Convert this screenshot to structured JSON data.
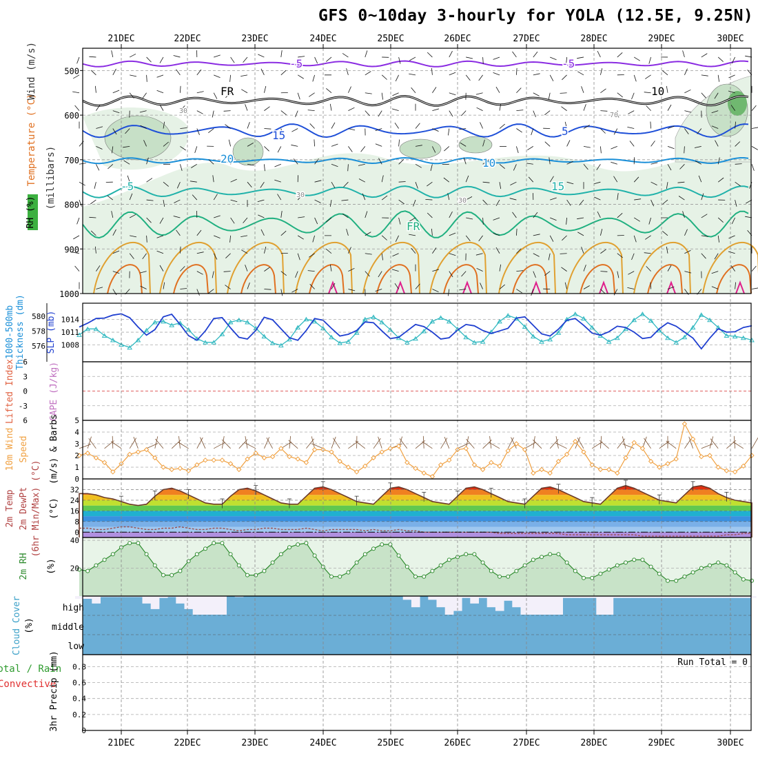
{
  "title": "GFS 0~10day 3-hourly for YOLA (12.5E, 9.25N)",
  "colors": {
    "rh_light": "#e6f2e6",
    "rh_mid": "#c7e0c7",
    "rh_dark": "#8cb08c",
    "temp_purple": "#8a2be2",
    "temp_black": "#000000",
    "temp_blue": "#1e4fd8",
    "temp_sky": "#1a8fd8",
    "temp_teal": "#20b2aa",
    "temp_green": "#20b080",
    "temp_gold": "#e0a030",
    "temp_orange": "#e07020",
    "temp_magenta": "#e0208c",
    "slp": "#1f3fd0",
    "thickness": "#30b8c0",
    "li_zero": "#e06060",
    "wind10": "#f0a040",
    "barb10": "#7a5030",
    "temp_line": "#6b3a2a",
    "dew_line": "#9a5050",
    "rh2m": "#2e8b2e",
    "rh2m_fill": "#c8e3c8",
    "cloud": "#6baed6",
    "cloud_clear": "#f3f0fa"
  },
  "chart_data": [
    {
      "type": "contour",
      "panel": "upper_air",
      "ylabels": [
        "Temperature (°C)",
        "Wind (m/s)",
        "(millibars)",
        "RH (%)"
      ],
      "yticks": [
        500,
        600,
        700,
        800,
        900,
        1000
      ],
      "ylim": [
        450,
        1000
      ],
      "xtick_labels": [
        "21DEC",
        "22DEC",
        "23DEC",
        "24DEC",
        "25DEC",
        "26DEC",
        "27DEC",
        "28DEC",
        "29DEC",
        "30DEC"
      ],
      "isotherm_labels": [
        "-5",
        "FR",
        "-5",
        "10",
        "15",
        "20",
        "-5",
        "FR",
        "5",
        "10",
        "15",
        "30",
        "30",
        "30",
        "70"
      ],
      "isotherms": [
        {
          "value": "-5",
          "level": 485,
          "color": "temp_purple"
        },
        {
          "value": "FR",
          "level": 568,
          "color": "temp_black"
        },
        {
          "value": "-5",
          "level": 635,
          "color": "temp_blue"
        },
        {
          "value": "10",
          "level": 702,
          "color": "temp_sky"
        },
        {
          "value": "15",
          "level": 772,
          "color": "temp_teal"
        },
        {
          "value": "20",
          "level": 845,
          "color": "temp_green"
        }
      ]
    },
    {
      "type": "line",
      "panel": "slp_thickness",
      "ylabels": [
        "1000-500mb Thickness (dm)",
        "SLP (mb)"
      ],
      "left_ticks": [
        576,
        578,
        580
      ],
      "right_ticks": [
        1008,
        1011,
        1014
      ],
      "series": [
        {
          "name": "SLP (mb)",
          "color": "slp",
          "values": [
            1012.2,
            1013.1,
            1014.2,
            1014.3,
            1015,
            1015.3,
            1014.4,
            1012.2,
            1010.3,
            1011.6,
            1014.6,
            1015.2,
            1012.8,
            1010.2,
            1009.1,
            1011.3,
            1014.2,
            1014.4,
            1012,
            1009.8,
            1009.4,
            1011.4,
            1014.5,
            1013.9,
            1011.8,
            1009.7,
            1009.1,
            1011.4,
            1014.2,
            1013.8,
            1011.9,
            1010.1,
            1010.5,
            1011.4,
            1013.4,
            1013.2,
            1011.3,
            1009.5,
            1009.8,
            1011.3,
            1012.8,
            1012.3,
            1011,
            1009.4,
            1009.7,
            1011.5,
            1012.8,
            1012.5,
            1011.4,
            1010.7,
            1011.3,
            1011.9,
            1014.3,
            1014.6,
            1012.6,
            1010.6,
            1010.1,
            1011.7,
            1013.8,
            1014.2,
            1012.6,
            1010.8,
            1010.3,
            1011.1,
            1012.4,
            1012.1,
            1011,
            1009.5,
            1009.8,
            1011.8,
            1013.2,
            1012.4,
            1011,
            1009.6,
            1007.1,
            1009.6,
            1011.8,
            1011,
            1011.1,
            1012.1,
            1012.5
          ]
        },
        {
          "name": "1000-500mb Thickness (dm)",
          "color": "thickness",
          "values": [
            577.5,
            578.3,
            578.3,
            577.4,
            576.8,
            576.2,
            575.8,
            576.8,
            578.1,
            579.2,
            579.3,
            578.8,
            579.1,
            578.2,
            577,
            576.5,
            576.5,
            577.6,
            579.2,
            579.5,
            579.2,
            578.4,
            577.3,
            576.4,
            576.1,
            576.9,
            578.5,
            579.6,
            579.3,
            578.4,
            577.2,
            576.4,
            576.6,
            577.8,
            579.6,
            579.9,
            579.2,
            578.2,
            577.1,
            576.5,
            577,
            578,
            579.3,
            579.8,
            579.3,
            578.3,
            577.2,
            576.5,
            576.6,
            577.9,
            579.3,
            580.1,
            579.7,
            578.6,
            577.3,
            576.6,
            576.9,
            577.8,
            579.6,
            580.3,
            579.7,
            578.5,
            577.4,
            576.6,
            577.1,
            578.3,
            579.5,
            580.3,
            579.4,
            578.1,
            577.1,
            576.5,
            577.2,
            578.5,
            580.2,
            579.5,
            578.5,
            577.4,
            577.3,
            577.1,
            576.8
          ]
        }
      ]
    },
    {
      "type": "line",
      "panel": "stability",
      "ylabels": [
        "Lifted Index",
        "CAPE (J/kg)"
      ],
      "yticks": [
        -6,
        -3,
        0,
        3,
        6
      ],
      "tick_labels": [
        "6",
        "3",
        "0",
        "-3",
        "6"
      ],
      "ylim": [
        -6,
        6
      ],
      "series": []
    },
    {
      "type": "line",
      "panel": "wind10m",
      "ylabels": [
        "10m Wind",
        "Speed",
        "(m/s) & Barbs"
      ],
      "yticks": [
        0,
        1,
        2,
        3,
        4,
        5
      ],
      "ylim": [
        0,
        5
      ],
      "series": [
        {
          "name": "10m Wind Speed (m/s)",
          "color": "wind10",
          "values": [
            2,
            2.2,
            1.8,
            1.4,
            0.6,
            1.3,
            2.1,
            2.3,
            2.5,
            1.8,
            1,
            0.8,
            0.9,
            0.7,
            1.2,
            1.6,
            1.6,
            1.6,
            1.3,
            0.8,
            1.7,
            2.2,
            1.8,
            1.9,
            2.6,
            1.9,
            1.7,
            1.4,
            2.5,
            2.5,
            2.3,
            1.5,
            1,
            0.6,
            1.1,
            1.8,
            2.3,
            2.6,
            2.8,
            1.4,
            0.9,
            0.5,
            0.2,
            1.2,
            1.6,
            2.5,
            2.6,
            1.2,
            0.8,
            1.4,
            1.1,
            2.4,
            3,
            2.5,
            0.5,
            0.8,
            0.5,
            1.5,
            2.1,
            3.2,
            2.3,
            1.2,
            0.8,
            0.8,
            0.5,
            1.8,
            3.1,
            2.6,
            1.5,
            1,
            1.3,
            1.7,
            4.7,
            3.4,
            1.9,
            2,
            1,
            0.7,
            0.6,
            1.1,
            2
          ]
        }
      ]
    },
    {
      "type": "area",
      "panel": "temp2m",
      "ylabels": [
        "2m Temp",
        "2m DewPt",
        "(6hr Min/Max) (°C)"
      ],
      "yticks": [
        0,
        8,
        16,
        24,
        32
      ],
      "ylim": [
        -4,
        40
      ],
      "series": [
        {
          "name": "2m Temp (°C)",
          "color": "temp_line",
          "values": [
            29,
            29,
            28,
            26,
            25,
            23,
            21,
            20,
            21,
            27,
            32,
            33,
            31,
            28,
            25,
            22,
            21,
            21,
            27,
            32,
            33,
            31,
            28,
            25,
            22,
            21,
            21,
            27,
            33,
            34,
            32,
            29,
            26,
            23,
            22,
            21,
            27,
            33,
            34,
            32,
            29,
            26,
            23,
            22,
            21,
            27,
            33,
            34,
            32,
            29,
            26,
            23,
            22,
            21,
            27,
            33,
            34,
            32,
            29,
            26,
            23,
            22,
            21,
            27,
            33,
            35,
            33,
            30,
            27,
            24,
            23,
            22,
            28,
            34,
            35,
            33,
            29,
            26,
            24,
            23,
            22
          ]
        },
        {
          "name": "2m DewPt (°C)",
          "color": "dew_line",
          "values": [
            3,
            3,
            2,
            2,
            3,
            4,
            4,
            3,
            2,
            2,
            3,
            3,
            4,
            3,
            2,
            2,
            3,
            3,
            2,
            1,
            2,
            2,
            3,
            3,
            2,
            2,
            2,
            3,
            2,
            1,
            2,
            2,
            2,
            2,
            1,
            2,
            1,
            1,
            2,
            1,
            1,
            0,
            0,
            0,
            0,
            0,
            0,
            0,
            0,
            0,
            -1,
            -1,
            -1,
            -1,
            -1,
            -1,
            -1,
            -1,
            -2,
            -2,
            -2,
            -2,
            -2,
            -2,
            -2,
            -2,
            -2,
            -3,
            -3,
            -3,
            -3,
            -3,
            -3,
            -3,
            -3,
            -3,
            -3,
            -2,
            -2,
            -1,
            -1
          ]
        }
      ]
    },
    {
      "type": "area",
      "panel": "rh2m",
      "ylabels": [
        "2m RH",
        "(%)"
      ],
      "yticks": [
        20,
        40
      ],
      "ylim": [
        0,
        42
      ],
      "series": [
        {
          "name": "2m RH (%)",
          "color": "rh2m",
          "values": [
            19,
            18,
            22,
            26,
            30,
            35,
            38,
            38,
            30,
            22,
            15,
            15,
            18,
            25,
            30,
            34,
            38,
            38,
            30,
            22,
            15,
            15,
            18,
            24,
            30,
            35,
            37,
            38,
            29,
            21,
            14,
            14,
            17,
            24,
            30,
            34,
            37,
            37,
            29,
            21,
            14,
            14,
            18,
            22,
            26,
            28,
            30,
            30,
            24,
            18,
            14,
            14,
            18,
            22,
            26,
            28,
            30,
            30,
            24,
            18,
            13,
            13,
            16,
            19,
            22,
            24,
            26,
            26,
            21,
            16,
            11,
            11,
            14,
            17,
            20,
            22,
            24,
            22,
            17,
            12,
            11
          ]
        }
      ]
    },
    {
      "type": "bar",
      "panel": "cloud_cover",
      "ylabels": [
        "Cloud Cover",
        "(%)"
      ],
      "layers": [
        "high",
        "middle",
        "low"
      ],
      "high_cover_percent": [
        85,
        85,
        60,
        95,
        95,
        95,
        95,
        95,
        60,
        30,
        90,
        95,
        60,
        30,
        0,
        0,
        0,
        0,
        100,
        95,
        100,
        100,
        100,
        100,
        100,
        100,
        100,
        100,
        100,
        100,
        100,
        100,
        100,
        100,
        100,
        100,
        100,
        100,
        100,
        80,
        40,
        100,
        80,
        40,
        0,
        20,
        90,
        60,
        90,
        40,
        20,
        75,
        40,
        0,
        0,
        0,
        0,
        0,
        90,
        90,
        90,
        90,
        0,
        0,
        90,
        90,
        90,
        90,
        90,
        90,
        90,
        90,
        90,
        90,
        90,
        90,
        90,
        90,
        90,
        90,
        90
      ]
    },
    {
      "type": "bar",
      "panel": "precip",
      "ylabels": [
        "Total / Rain",
        "Convective",
        "3hr Precip (mm)"
      ],
      "yticks": [
        0,
        0.2,
        0.4,
        0.6,
        0.8
      ],
      "ylim": [
        0,
        0.95
      ],
      "run_total_label": "Run Total = 0",
      "values": []
    }
  ]
}
